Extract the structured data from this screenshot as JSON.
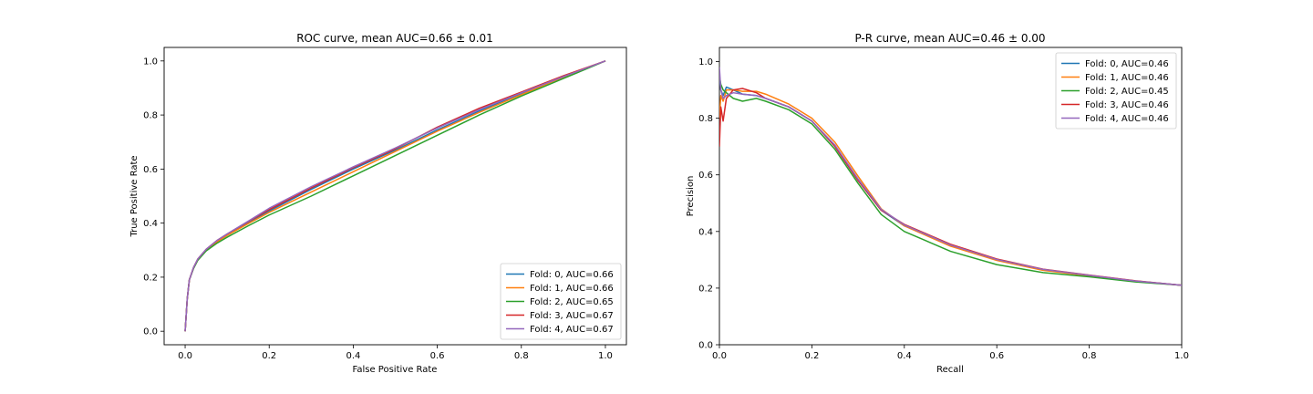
{
  "chart_data": [
    {
      "type": "line",
      "title": "ROC curve, mean AUC=0.66 ± 0.01",
      "xlabel": "False Positive Rate",
      "ylabel": "True Positive Rate",
      "xlim": [
        -0.05,
        1.05
      ],
      "ylim": [
        -0.05,
        1.05
      ],
      "xticks": [
        "0.0",
        "0.2",
        "0.4",
        "0.6",
        "0.8",
        "1.0"
      ],
      "yticks": [
        "0.0",
        "0.2",
        "0.4",
        "0.6",
        "0.8",
        "1.0"
      ],
      "grid": false,
      "legend_position": "lower-right",
      "series": [
        {
          "name": "Fold: 0, AUC=0.66",
          "color": "#1f77b4",
          "x": [
            0,
            0.005,
            0.01,
            0.02,
            0.03,
            0.05,
            0.075,
            0.1,
            0.15,
            0.2,
            0.3,
            0.4,
            0.5,
            0.6,
            0.7,
            0.8,
            0.9,
            1.0
          ],
          "y": [
            0,
            0.12,
            0.19,
            0.235,
            0.265,
            0.3,
            0.33,
            0.355,
            0.4,
            0.445,
            0.525,
            0.6,
            0.67,
            0.745,
            0.815,
            0.88,
            0.94,
            1.0
          ]
        },
        {
          "name": "Fold: 1, AUC=0.66",
          "color": "#ff7f0e",
          "x": [
            0,
            0.005,
            0.01,
            0.02,
            0.03,
            0.05,
            0.075,
            0.1,
            0.15,
            0.2,
            0.3,
            0.4,
            0.5,
            0.6,
            0.7,
            0.8,
            0.9,
            1.0
          ],
          "y": [
            0,
            0.12,
            0.19,
            0.235,
            0.265,
            0.3,
            0.33,
            0.355,
            0.398,
            0.44,
            0.515,
            0.59,
            0.665,
            0.74,
            0.81,
            0.875,
            0.94,
            1.0
          ]
        },
        {
          "name": "Fold: 2, AUC=0.65",
          "color": "#2ca02c",
          "x": [
            0,
            0.005,
            0.01,
            0.02,
            0.03,
            0.05,
            0.075,
            0.1,
            0.15,
            0.2,
            0.3,
            0.4,
            0.5,
            0.6,
            0.7,
            0.8,
            0.9,
            1.0
          ],
          "y": [
            0,
            0.12,
            0.19,
            0.232,
            0.262,
            0.297,
            0.325,
            0.348,
            0.39,
            0.43,
            0.5,
            0.575,
            0.65,
            0.725,
            0.8,
            0.87,
            0.935,
            1.0
          ]
        },
        {
          "name": "Fold: 3, AUC=0.67",
          "color": "#d62728",
          "x": [
            0,
            0.005,
            0.01,
            0.02,
            0.03,
            0.05,
            0.075,
            0.1,
            0.15,
            0.2,
            0.3,
            0.4,
            0.5,
            0.6,
            0.7,
            0.8,
            0.9,
            1.0
          ],
          "y": [
            0,
            0.12,
            0.19,
            0.236,
            0.267,
            0.303,
            0.335,
            0.36,
            0.405,
            0.45,
            0.53,
            0.605,
            0.675,
            0.755,
            0.825,
            0.885,
            0.945,
            1.0
          ]
        },
        {
          "name": "Fold: 4, AUC=0.67",
          "color": "#9467bd",
          "x": [
            0,
            0.005,
            0.01,
            0.02,
            0.03,
            0.05,
            0.075,
            0.1,
            0.15,
            0.2,
            0.3,
            0.4,
            0.5,
            0.6,
            0.7,
            0.8,
            0.9,
            1.0
          ],
          "y": [
            0,
            0.12,
            0.19,
            0.236,
            0.267,
            0.303,
            0.335,
            0.36,
            0.407,
            0.455,
            0.535,
            0.608,
            0.678,
            0.752,
            0.82,
            0.882,
            0.942,
            1.0
          ]
        }
      ]
    },
    {
      "type": "line",
      "title": "P-R curve, mean AUC=0.46 ± 0.00",
      "xlabel": "Recall",
      "ylabel": "Precision",
      "xlim": [
        0,
        1
      ],
      "ylim": [
        0,
        1.05
      ],
      "xticks": [
        "0.0",
        "0.2",
        "0.4",
        "0.6",
        "0.8",
        "1.0"
      ],
      "yticks": [
        "0.0",
        "0.2",
        "0.4",
        "0.6",
        "0.8",
        "1.0"
      ],
      "grid": false,
      "legend_position": "upper-right",
      "series": [
        {
          "name": "Fold: 0, AUC=0.46",
          "color": "#1f77b4",
          "x": [
            0,
            0.003,
            0.008,
            0.015,
            0.03,
            0.05,
            0.08,
            0.1,
            0.15,
            0.2,
            0.25,
            0.3,
            0.35,
            0.4,
            0.5,
            0.6,
            0.7,
            0.8,
            0.9,
            1.0
          ],
          "y": [
            0.95,
            0.9,
            0.88,
            0.91,
            0.9,
            0.885,
            0.88,
            0.87,
            0.84,
            0.79,
            0.7,
            0.58,
            0.475,
            0.42,
            0.35,
            0.3,
            0.265,
            0.245,
            0.225,
            0.21
          ]
        },
        {
          "name": "Fold: 1, AUC=0.46",
          "color": "#ff7f0e",
          "x": [
            0,
            0.003,
            0.008,
            0.015,
            0.03,
            0.05,
            0.08,
            0.1,
            0.15,
            0.2,
            0.25,
            0.3,
            0.35,
            0.4,
            0.5,
            0.6,
            0.7,
            0.8,
            0.9,
            1.0
          ],
          "y": [
            0.8,
            0.88,
            0.86,
            0.9,
            0.9,
            0.895,
            0.895,
            0.885,
            0.85,
            0.8,
            0.715,
            0.595,
            0.48,
            0.42,
            0.348,
            0.298,
            0.263,
            0.243,
            0.224,
            0.21
          ]
        },
        {
          "name": "Fold: 2, AUC=0.45",
          "color": "#2ca02c",
          "x": [
            0,
            0.003,
            0.008,
            0.015,
            0.03,
            0.05,
            0.08,
            0.1,
            0.15,
            0.2,
            0.25,
            0.3,
            0.35,
            0.4,
            0.5,
            0.6,
            0.7,
            0.8,
            0.9,
            1.0
          ],
          "y": [
            0.95,
            0.92,
            0.9,
            0.89,
            0.87,
            0.86,
            0.87,
            0.86,
            0.83,
            0.78,
            0.69,
            0.57,
            0.46,
            0.4,
            0.33,
            0.283,
            0.255,
            0.24,
            0.222,
            0.21
          ]
        },
        {
          "name": "Fold: 3, AUC=0.46",
          "color": "#d62728",
          "x": [
            0,
            0.003,
            0.008,
            0.015,
            0.03,
            0.05,
            0.08,
            0.1,
            0.15,
            0.2,
            0.25,
            0.3,
            0.35,
            0.4,
            0.5,
            0.6,
            0.7,
            0.8,
            0.9,
            1.0
          ],
          "y": [
            0.7,
            0.84,
            0.79,
            0.87,
            0.9,
            0.905,
            0.89,
            0.87,
            0.84,
            0.79,
            0.7,
            0.58,
            0.475,
            0.425,
            0.355,
            0.303,
            0.267,
            0.246,
            0.226,
            0.21
          ]
        },
        {
          "name": "Fold: 4, AUC=0.46",
          "color": "#9467bd",
          "x": [
            0,
            0.003,
            0.008,
            0.015,
            0.03,
            0.05,
            0.08,
            0.1,
            0.15,
            0.2,
            0.25,
            0.3,
            0.35,
            0.4,
            0.5,
            0.6,
            0.7,
            0.8,
            0.9,
            1.0
          ],
          "y": [
            0.98,
            0.9,
            0.87,
            0.88,
            0.89,
            0.885,
            0.88,
            0.87,
            0.84,
            0.79,
            0.705,
            0.585,
            0.478,
            0.423,
            0.352,
            0.301,
            0.266,
            0.245,
            0.225,
            0.21
          ]
        }
      ]
    }
  ]
}
